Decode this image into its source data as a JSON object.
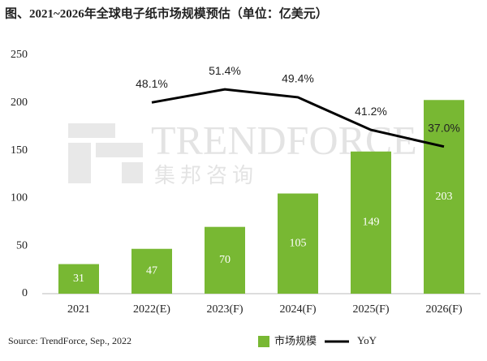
{
  "chart_data": {
    "type": "bar",
    "title": "图、2021~2026年全球电子纸市场规模预估（单位：亿美元）",
    "categories": [
      "2021",
      "2022(E)",
      "2023(F)",
      "2024(F)",
      "2025(F)",
      "2026(F)"
    ],
    "series": [
      {
        "name": "市场规模",
        "type": "bar",
        "color": "#78b833",
        "values": [
          31,
          47,
          70,
          105,
          149,
          203
        ]
      },
      {
        "name": "YoY",
        "type": "line",
        "axis": "y2",
        "color": "#000000",
        "values": [
          null,
          48.1,
          51.4,
          49.4,
          41.2,
          37.0
        ],
        "value_labels": [
          null,
          "48.1%",
          "51.4%",
          "49.4%",
          "41.2%",
          "37.0%"
        ]
      }
    ],
    "ylim": [
      0,
      250
    ],
    "yticks": [
      0,
      50,
      100,
      150,
      200,
      250
    ],
    "y2lim": [
      0,
      60
    ],
    "grid": false,
    "legend": "bottom",
    "source": "Source: TrendForce, Sep., 2022",
    "watermark": [
      "TRENDFORCE",
      "集邦咨询"
    ]
  }
}
